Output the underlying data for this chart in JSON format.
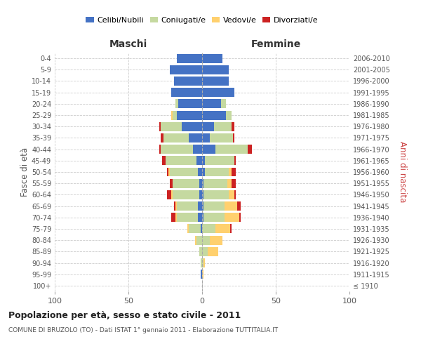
{
  "age_groups": [
    "100+",
    "95-99",
    "90-94",
    "85-89",
    "80-84",
    "75-79",
    "70-74",
    "65-69",
    "60-64",
    "55-59",
    "50-54",
    "45-49",
    "40-44",
    "35-39",
    "30-34",
    "25-29",
    "20-24",
    "15-19",
    "10-14",
    "5-9",
    "0-4"
  ],
  "birth_years": [
    "≤ 1910",
    "1911-1915",
    "1916-1920",
    "1921-1925",
    "1926-1930",
    "1931-1935",
    "1936-1940",
    "1941-1945",
    "1946-1950",
    "1951-1955",
    "1956-1960",
    "1961-1965",
    "1966-1970",
    "1971-1975",
    "1976-1980",
    "1981-1985",
    "1986-1990",
    "1991-1995",
    "1996-2000",
    "2001-2005",
    "2006-2010"
  ],
  "maschi": {
    "celibi": [
      0,
      1,
      0,
      0,
      0,
      1,
      3,
      3,
      2,
      2,
      3,
      4,
      6,
      9,
      14,
      17,
      16,
      21,
      19,
      22,
      17
    ],
    "coniugati": [
      0,
      0,
      1,
      2,
      4,
      8,
      14,
      14,
      18,
      18,
      19,
      21,
      22,
      17,
      14,
      3,
      2,
      0,
      0,
      0,
      0
    ],
    "vedovi": [
      0,
      0,
      0,
      0,
      1,
      1,
      1,
      1,
      1,
      0,
      1,
      0,
      0,
      0,
      0,
      1,
      0,
      0,
      0,
      0,
      0
    ],
    "divorziati": [
      0,
      0,
      0,
      0,
      0,
      0,
      3,
      1,
      3,
      2,
      1,
      2,
      1,
      2,
      1,
      0,
      0,
      0,
      0,
      0,
      0
    ]
  },
  "femmine": {
    "nubili": [
      0,
      0,
      0,
      0,
      0,
      0,
      1,
      1,
      1,
      1,
      2,
      2,
      9,
      5,
      8,
      16,
      13,
      22,
      18,
      18,
      14
    ],
    "coniugate": [
      0,
      0,
      1,
      4,
      5,
      9,
      14,
      14,
      17,
      16,
      16,
      20,
      22,
      16,
      12,
      4,
      3,
      0,
      0,
      0,
      0
    ],
    "vedove": [
      0,
      1,
      1,
      7,
      9,
      10,
      10,
      9,
      4,
      3,
      2,
      0,
      0,
      0,
      0,
      0,
      0,
      0,
      0,
      0,
      0
    ],
    "divorziate": [
      0,
      0,
      0,
      0,
      0,
      1,
      1,
      2,
      1,
      3,
      3,
      1,
      3,
      1,
      2,
      0,
      0,
      0,
      0,
      0,
      0
    ]
  },
  "colors": {
    "celibi_nubili": "#4472c4",
    "coniugati": "#c5d9a0",
    "vedovi": "#ffd06e",
    "divorziati": "#cc2222"
  },
  "title": "Popolazione per età, sesso e stato civile - 2011",
  "subtitle": "COMUNE DI BRUZOLO (TO) - Dati ISTAT 1° gennaio 2011 - Elaborazione TUTTITALIA.IT",
  "xlabel_left": "Maschi",
  "xlabel_right": "Femmine",
  "ylabel_left": "Fasce di età",
  "ylabel_right": "Anni di nascita",
  "xlim": 100,
  "background_color": "#ffffff",
  "grid_color": "#cccccc",
  "bar_height": 0.8
}
